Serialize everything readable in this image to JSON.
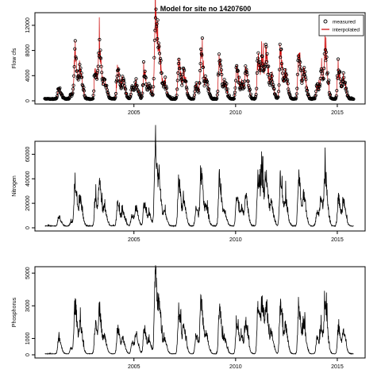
{
  "figure": {
    "title": "Model for site no 14207600"
  },
  "chart_data": [
    {
      "type": "scatter",
      "panel": "flow",
      "title": "Model for site no 14207600",
      "xlabel": "",
      "ylabel": "Flow cfs",
      "xlim": [
        2000.6,
        2015.9
      ],
      "ylim": [
        0,
        13500
      ],
      "x_ticks": [
        2005,
        2010,
        2015
      ],
      "y_ticks": [
        0,
        4000,
        8000,
        12000
      ],
      "y_tick_labels": [
        "0",
        "4000",
        "8000",
        "12000"
      ],
      "legend": {
        "placement": "top-right",
        "entries": [
          {
            "label": "measured",
            "marker": "open-circle",
            "color": "#000000"
          },
          {
            "label": "interpolated",
            "marker": "line",
            "color": "#cc0000"
          }
        ]
      },
      "baseline": 300,
      "peaks": [
        {
          "x": 2001.3,
          "y": 2000
        },
        {
          "x": 2001.9,
          "y": 1000
        },
        {
          "x": 2002.1,
          "y": 7500
        },
        {
          "x": 2002.35,
          "y": 4500
        },
        {
          "x": 2003.1,
          "y": 4500
        },
        {
          "x": 2003.3,
          "y": 7500
        },
        {
          "x": 2003.55,
          "y": 3000
        },
        {
          "x": 2004.2,
          "y": 5000
        },
        {
          "x": 2004.45,
          "y": 3000
        },
        {
          "x": 2004.9,
          "y": 2000
        },
        {
          "x": 2005.1,
          "y": 2500
        },
        {
          "x": 2005.5,
          "y": 4500
        },
        {
          "x": 2005.75,
          "y": 2000
        },
        {
          "x": 2006.05,
          "y": 13000
        },
        {
          "x": 2006.25,
          "y": 6000
        },
        {
          "x": 2006.5,
          "y": 2500
        },
        {
          "x": 2007.2,
          "y": 6500
        },
        {
          "x": 2007.45,
          "y": 4000
        },
        {
          "x": 2008.05,
          "y": 2500
        },
        {
          "x": 2008.3,
          "y": 7200
        },
        {
          "x": 2008.55,
          "y": 3000
        },
        {
          "x": 2009.2,
          "y": 6500
        },
        {
          "x": 2009.45,
          "y": 2500
        },
        {
          "x": 2010.05,
          "y": 5000
        },
        {
          "x": 2010.3,
          "y": 2500
        },
        {
          "x": 2010.5,
          "y": 4500
        },
        {
          "x": 2011.1,
          "y": 6500
        },
        {
          "x": 2011.3,
          "y": 6000
        },
        {
          "x": 2011.5,
          "y": 7000
        },
        {
          "x": 2011.75,
          "y": 3500
        },
        {
          "x": 2012.2,
          "y": 7500
        },
        {
          "x": 2012.45,
          "y": 4000
        },
        {
          "x": 2013.1,
          "y": 7000
        },
        {
          "x": 2013.35,
          "y": 4500
        },
        {
          "x": 2014.0,
          "y": 2500
        },
        {
          "x": 2014.2,
          "y": 4000
        },
        {
          "x": 2014.4,
          "y": 7200
        },
        {
          "x": 2015.05,
          "y": 4500
        },
        {
          "x": 2015.3,
          "y": 3500
        }
      ]
    },
    {
      "type": "line",
      "panel": "nitrogen",
      "title": "",
      "xlabel": "",
      "ylabel": "Nitrogen",
      "xlim": [
        2000.6,
        2015.9
      ],
      "ylim": [
        0,
        68000
      ],
      "x_ticks": [
        2005,
        2010,
        2015
      ],
      "y_ticks": [
        0,
        20000,
        40000,
        60000
      ],
      "y_tick_labels": [
        "0",
        "20000",
        "40000",
        "60000"
      ],
      "baseline": 1500,
      "peaks": [
        {
          "x": 2001.3,
          "y": 9000
        },
        {
          "x": 2001.9,
          "y": 5000
        },
        {
          "x": 2002.1,
          "y": 35000
        },
        {
          "x": 2002.35,
          "y": 22000
        },
        {
          "x": 2003.1,
          "y": 22000
        },
        {
          "x": 2003.3,
          "y": 36000
        },
        {
          "x": 2003.55,
          "y": 15000
        },
        {
          "x": 2004.2,
          "y": 20000
        },
        {
          "x": 2004.45,
          "y": 12000
        },
        {
          "x": 2004.9,
          "y": 10000
        },
        {
          "x": 2005.1,
          "y": 15000
        },
        {
          "x": 2005.5,
          "y": 20000
        },
        {
          "x": 2005.75,
          "y": 10000
        },
        {
          "x": 2006.05,
          "y": 64000
        },
        {
          "x": 2006.25,
          "y": 28000
        },
        {
          "x": 2006.5,
          "y": 12000
        },
        {
          "x": 2007.2,
          "y": 38000
        },
        {
          "x": 2007.45,
          "y": 20000
        },
        {
          "x": 2008.05,
          "y": 15000
        },
        {
          "x": 2008.3,
          "y": 42000
        },
        {
          "x": 2008.55,
          "y": 15000
        },
        {
          "x": 2009.2,
          "y": 40000
        },
        {
          "x": 2009.45,
          "y": 12000
        },
        {
          "x": 2010.05,
          "y": 27000
        },
        {
          "x": 2010.3,
          "y": 14000
        },
        {
          "x": 2010.5,
          "y": 24000
        },
        {
          "x": 2011.1,
          "y": 40000
        },
        {
          "x": 2011.3,
          "y": 36000
        },
        {
          "x": 2011.5,
          "y": 38000
        },
        {
          "x": 2011.75,
          "y": 18000
        },
        {
          "x": 2012.2,
          "y": 42000
        },
        {
          "x": 2012.45,
          "y": 22000
        },
        {
          "x": 2013.1,
          "y": 40000
        },
        {
          "x": 2013.35,
          "y": 24000
        },
        {
          "x": 2014.0,
          "y": 14000
        },
        {
          "x": 2014.2,
          "y": 22000
        },
        {
          "x": 2014.4,
          "y": 40000
        },
        {
          "x": 2015.05,
          "y": 24000
        },
        {
          "x": 2015.3,
          "y": 20000
        }
      ]
    },
    {
      "type": "line",
      "panel": "phosphorus",
      "title": "",
      "xlabel": "",
      "ylabel": "Phosphorus",
      "xlim": [
        2000.6,
        2015.9
      ],
      "ylim": [
        0,
        5200
      ],
      "x_ticks": [
        2005,
        2010,
        2015
      ],
      "y_ticks": [
        0,
        1000,
        3000,
        5000
      ],
      "y_tick_labels": [
        "0",
        "1000",
        "3000",
        "5000"
      ],
      "baseline": 60,
      "peaks": [
        {
          "x": 2001.3,
          "y": 1000
        },
        {
          "x": 2001.9,
          "y": 400
        },
        {
          "x": 2002.1,
          "y": 3000
        },
        {
          "x": 2002.35,
          "y": 1800
        },
        {
          "x": 2003.1,
          "y": 1800
        },
        {
          "x": 2003.3,
          "y": 2600
        },
        {
          "x": 2003.55,
          "y": 1000
        },
        {
          "x": 2004.2,
          "y": 1600
        },
        {
          "x": 2004.45,
          "y": 900
        },
        {
          "x": 2004.9,
          "y": 800
        },
        {
          "x": 2005.1,
          "y": 1200
        },
        {
          "x": 2005.5,
          "y": 1600
        },
        {
          "x": 2005.75,
          "y": 700
        },
        {
          "x": 2006.05,
          "y": 5000
        },
        {
          "x": 2006.25,
          "y": 2200
        },
        {
          "x": 2006.5,
          "y": 900
        },
        {
          "x": 2007.2,
          "y": 2700
        },
        {
          "x": 2007.45,
          "y": 1500
        },
        {
          "x": 2008.05,
          "y": 1200
        },
        {
          "x": 2008.3,
          "y": 3200
        },
        {
          "x": 2008.55,
          "y": 1200
        },
        {
          "x": 2009.2,
          "y": 2800
        },
        {
          "x": 2009.45,
          "y": 900
        },
        {
          "x": 2010.05,
          "y": 2000
        },
        {
          "x": 2010.3,
          "y": 1000
        },
        {
          "x": 2010.5,
          "y": 1800
        },
        {
          "x": 2011.1,
          "y": 3000
        },
        {
          "x": 2011.3,
          "y": 2600
        },
        {
          "x": 2011.5,
          "y": 2800
        },
        {
          "x": 2011.75,
          "y": 1300
        },
        {
          "x": 2012.2,
          "y": 3000
        },
        {
          "x": 2012.45,
          "y": 1600
        },
        {
          "x": 2013.1,
          "y": 2800
        },
        {
          "x": 2013.35,
          "y": 1700
        },
        {
          "x": 2014.0,
          "y": 1000
        },
        {
          "x": 2014.2,
          "y": 1500
        },
        {
          "x": 2014.4,
          "y": 2900
        },
        {
          "x": 2015.05,
          "y": 1600
        },
        {
          "x": 2015.3,
          "y": 1400
        }
      ]
    }
  ]
}
